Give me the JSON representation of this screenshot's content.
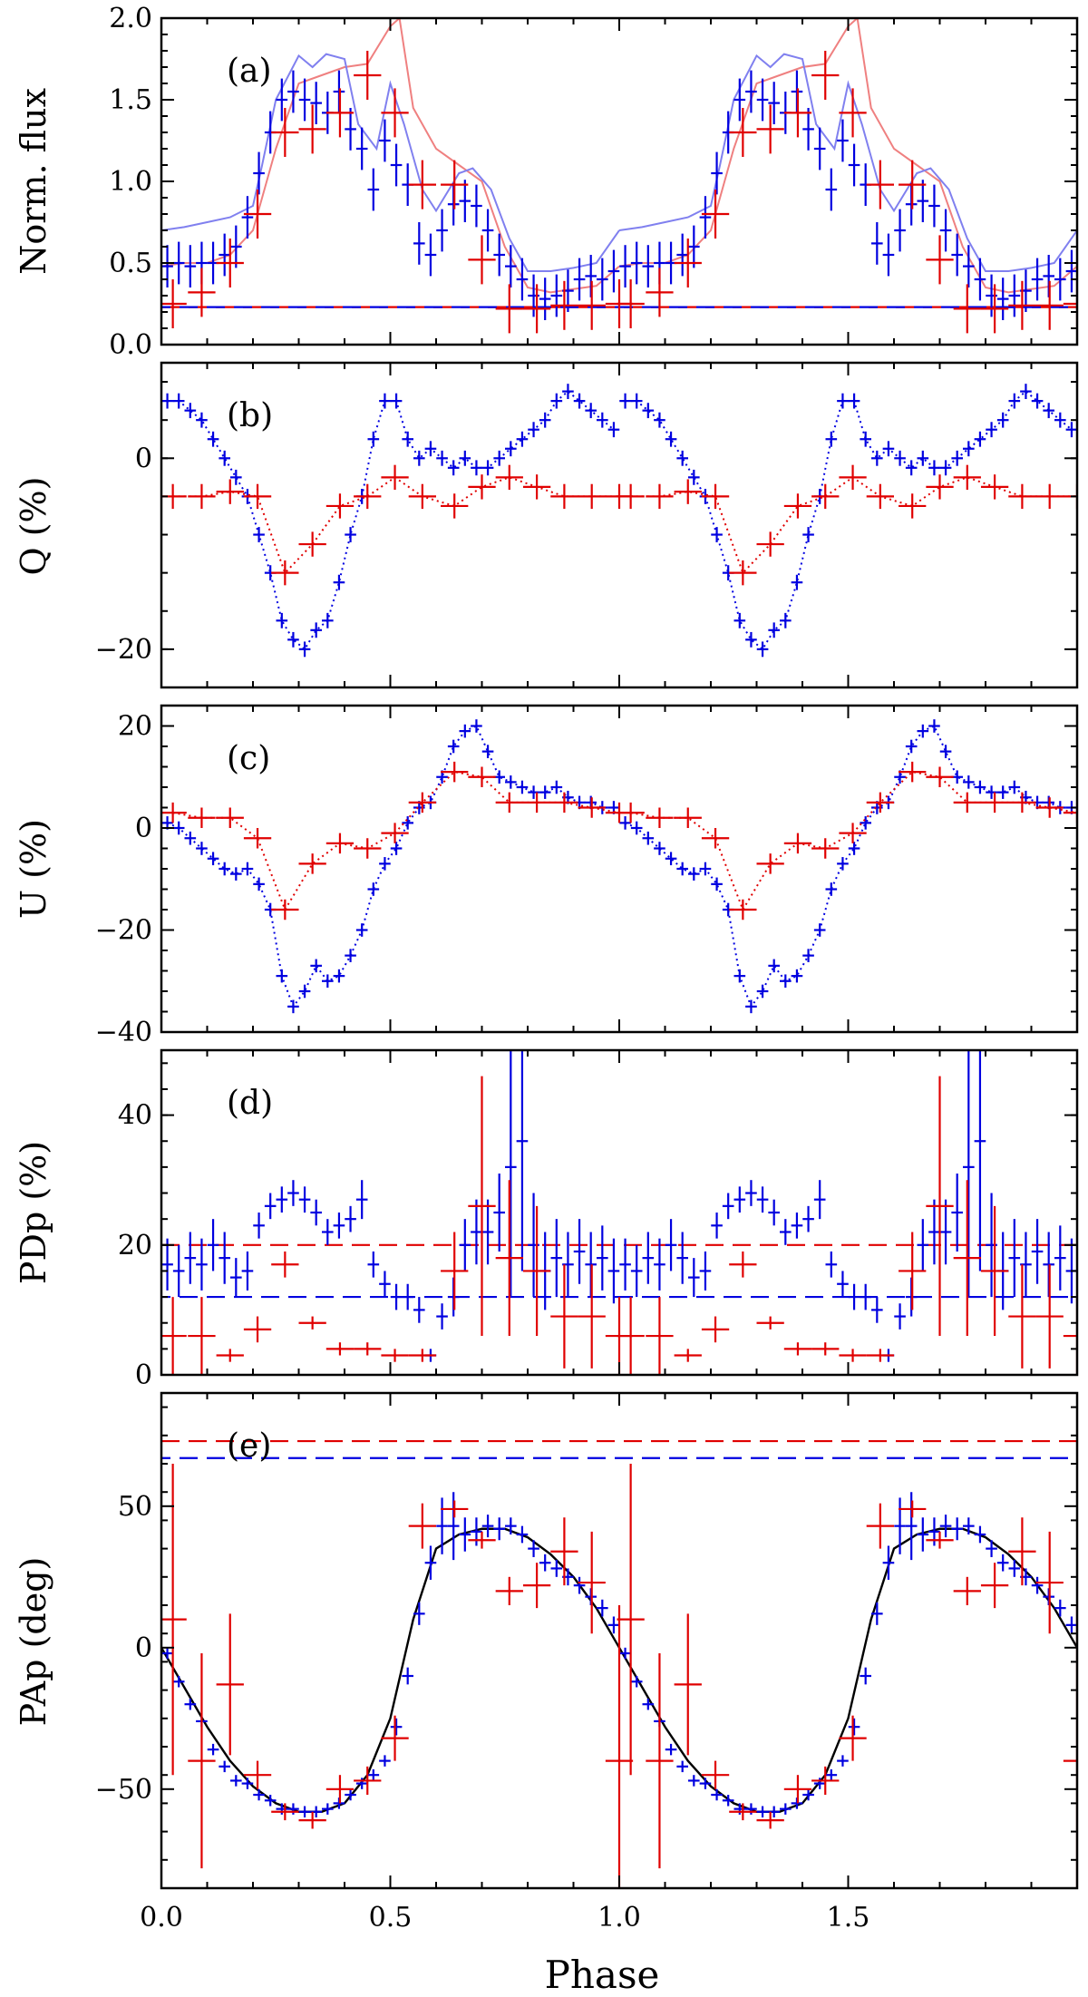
{
  "chart_data": [
    {
      "type": "line",
      "id": "a",
      "panel_label": "(a)",
      "ylabel": "Norm. flux",
      "xlim": [
        0,
        2
      ],
      "ylim": [
        0,
        2
      ],
      "yticks": [
        0,
        0.5,
        1,
        1.5,
        2
      ],
      "yticklabels": [
        "0.0",
        "0.5",
        "1.0",
        "1.5",
        "2.0"
      ],
      "curves": [
        {
          "color": "#ef8080",
          "x": [
            0,
            0.05,
            0.1,
            0.15,
            0.2,
            0.25,
            0.3,
            0.35,
            0.4,
            0.45,
            0.5,
            0.52,
            0.55,
            0.6,
            0.65,
            0.7,
            0.75,
            0.8,
            0.85,
            0.9,
            0.95,
            1.0
          ],
          "y": [
            0.48,
            0.5,
            0.5,
            0.55,
            0.7,
            1.2,
            1.6,
            1.65,
            1.7,
            1.72,
            1.95,
            2.0,
            1.45,
            1.2,
            1.1,
            1.0,
            0.6,
            0.35,
            0.32,
            0.34,
            0.36,
            0.48
          ]
        },
        {
          "color": "#8080ef",
          "x": [
            0,
            0.05,
            0.1,
            0.15,
            0.2,
            0.22,
            0.25,
            0.3,
            0.33,
            0.36,
            0.4,
            0.43,
            0.47,
            0.5,
            0.53,
            0.57,
            0.6,
            0.65,
            0.68,
            0.72,
            0.76,
            0.8,
            0.85,
            0.9,
            0.95,
            1.0
          ],
          "y": [
            0.7,
            0.72,
            0.75,
            0.78,
            0.85,
            1.1,
            1.5,
            1.77,
            1.7,
            1.78,
            1.75,
            1.35,
            1.2,
            1.6,
            1.35,
            0.95,
            0.82,
            1.05,
            1.08,
            0.95,
            0.65,
            0.45,
            0.45,
            0.47,
            0.5,
            0.7
          ]
        }
      ],
      "series": [
        {
          "color": "#0000e0",
          "x": [
            0.013,
            0.038,
            0.063,
            0.088,
            0.113,
            0.138,
            0.163,
            0.188,
            0.213,
            0.238,
            0.263,
            0.288,
            0.313,
            0.338,
            0.363,
            0.388,
            0.413,
            0.438,
            0.463,
            0.488,
            0.513,
            0.538,
            0.563,
            0.588,
            0.613,
            0.638,
            0.663,
            0.688,
            0.713,
            0.738,
            0.763,
            0.788,
            0.813,
            0.838,
            0.863,
            0.888,
            0.913,
            0.938,
            0.963,
            0.988
          ],
          "y": [
            0.48,
            0.5,
            0.48,
            0.5,
            0.5,
            0.55,
            0.6,
            0.78,
            1.05,
            1.3,
            1.5,
            1.55,
            1.5,
            1.48,
            1.42,
            1.55,
            1.32,
            1.2,
            0.95,
            1.25,
            1.1,
            0.98,
            0.62,
            0.55,
            0.7,
            0.86,
            0.88,
            0.85,
            0.7,
            0.55,
            0.48,
            0.4,
            0.3,
            0.28,
            0.3,
            0.33,
            0.4,
            0.42,
            0.4,
            0.45
          ],
          "err": 0.13
        },
        {
          "color": "#e00000",
          "x": [
            0.025,
            0.088,
            0.15,
            0.21,
            0.27,
            0.33,
            0.39,
            0.45,
            0.51,
            0.57,
            0.64,
            0.7,
            0.76,
            0.82,
            0.88,
            0.94,
            1.0
          ],
          "y": [
            0.25,
            0.32,
            0.5,
            0.8,
            1.3,
            1.32,
            1.42,
            1.65,
            1.42,
            0.98,
            0.98,
            0.52,
            0.22,
            0.22,
            0.24,
            0.24,
            0.25
          ],
          "err": 0.15
        }
      ],
      "hlines": [
        {
          "y": 0.23,
          "color": "#e00000"
        },
        {
          "y": 0.23,
          "color": "#0000e0"
        }
      ]
    },
    {
      "type": "line",
      "id": "b",
      "panel_label": "(b)",
      "ylabel": "Q (%)",
      "xlim": [
        0,
        2
      ],
      "ylim": [
        -24,
        10
      ],
      "yticks": [
        -20,
        0
      ],
      "yticklabels": [
        "−20",
        "0"
      ],
      "series": [
        {
          "color": "#0000e0",
          "x": [
            0.013,
            0.038,
            0.063,
            0.088,
            0.113,
            0.138,
            0.163,
            0.188,
            0.213,
            0.238,
            0.263,
            0.288,
            0.313,
            0.338,
            0.363,
            0.388,
            0.413,
            0.438,
            0.463,
            0.488,
            0.513,
            0.538,
            0.563,
            0.588,
            0.613,
            0.638,
            0.663,
            0.688,
            0.713,
            0.738,
            0.763,
            0.788,
            0.813,
            0.838,
            0.863,
            0.888,
            0.913,
            0.938,
            0.963,
            0.988
          ],
          "y": [
            6,
            6,
            5,
            4,
            2,
            0,
            -2,
            -4,
            -8,
            -12,
            -17,
            -19,
            -20,
            -18,
            -17,
            -13,
            -8,
            -4,
            2,
            6,
            6,
            2,
            0,
            1,
            0,
            -1,
            0,
            -1,
            -1,
            0,
            1,
            2,
            3,
            4,
            6,
            7,
            6,
            5,
            4,
            3
          ],
          "err": 0.8,
          "line": true
        },
        {
          "color": "#e00000",
          "x": [
            0.025,
            0.088,
            0.15,
            0.21,
            0.27,
            0.33,
            0.39,
            0.45,
            0.51,
            0.57,
            0.64,
            0.7,
            0.76,
            0.82,
            0.88,
            0.94,
            1.0
          ],
          "y": [
            -4,
            -4,
            -3.5,
            -4,
            -12,
            -9,
            -5,
            -4,
            -2,
            -4,
            -5,
            -3,
            -2,
            -3,
            -4,
            -4,
            -4
          ],
          "err": 1.3,
          "line": true
        }
      ]
    },
    {
      "type": "line",
      "id": "c",
      "panel_label": "(c)",
      "ylabel": "U (%)",
      "xlim": [
        0,
        2
      ],
      "ylim": [
        -40,
        24
      ],
      "yticks": [
        -40,
        -20,
        0,
        20
      ],
      "yticklabels": [
        "−40",
        "−20",
        "0",
        "20"
      ],
      "series": [
        {
          "color": "#0000e0",
          "x": [
            0.013,
            0.038,
            0.063,
            0.088,
            0.113,
            0.138,
            0.163,
            0.188,
            0.213,
            0.238,
            0.263,
            0.288,
            0.313,
            0.338,
            0.363,
            0.388,
            0.413,
            0.438,
            0.463,
            0.488,
            0.513,
            0.538,
            0.563,
            0.588,
            0.613,
            0.638,
            0.663,
            0.688,
            0.713,
            0.738,
            0.763,
            0.788,
            0.813,
            0.838,
            0.863,
            0.888,
            0.913,
            0.938,
            0.963,
            0.988
          ],
          "y": [
            1,
            0,
            -2,
            -4,
            -6,
            -8,
            -9,
            -8,
            -11,
            -16,
            -29,
            -35,
            -32,
            -27,
            -30,
            -29,
            -25,
            -20,
            -12,
            -7,
            -4,
            1,
            4,
            5,
            10,
            16,
            19,
            20,
            15,
            10,
            9,
            8,
            7,
            7,
            8,
            6,
            5,
            5,
            4,
            4
          ],
          "err": 1.3,
          "line": true
        },
        {
          "color": "#e00000",
          "x": [
            0.025,
            0.088,
            0.15,
            0.21,
            0.27,
            0.33,
            0.39,
            0.45,
            0.51,
            0.57,
            0.64,
            0.7,
            0.76,
            0.82,
            0.88,
            0.94,
            1.0
          ],
          "y": [
            3,
            2,
            2,
            -2,
            -16,
            -7,
            -3,
            -4,
            -1,
            5,
            11,
            10,
            5,
            5,
            5,
            4,
            3
          ],
          "err": 2.0,
          "line": true
        }
      ]
    },
    {
      "type": "scatter",
      "id": "d",
      "panel_label": "(d)",
      "ylabel": "PDp (%)",
      "xlim": [
        0,
        2
      ],
      "ylim": [
        0,
        50
      ],
      "yticks": [
        0,
        20,
        40
      ],
      "yticklabels": [
        "0",
        "20",
        "40"
      ],
      "series": [
        {
          "color": "#0000e0",
          "x": [
            0.013,
            0.038,
            0.063,
            0.088,
            0.113,
            0.138,
            0.163,
            0.188,
            0.213,
            0.238,
            0.263,
            0.288,
            0.313,
            0.338,
            0.363,
            0.388,
            0.413,
            0.438,
            0.463,
            0.488,
            0.513,
            0.538,
            0.563,
            0.588,
            0.613,
            0.638,
            0.663,
            0.688,
            0.713,
            0.738,
            0.763,
            0.788,
            0.813,
            0.838,
            0.863,
            0.888,
            0.913,
            0.938,
            0.963,
            0.988
          ],
          "y": [
            17,
            16,
            18,
            17,
            20,
            18,
            15,
            16,
            23,
            26,
            27,
            28,
            27,
            25,
            22,
            23,
            24,
            27,
            17,
            14,
            12,
            12,
            10,
            3,
            9,
            12,
            20,
            22,
            22,
            25,
            32,
            36,
            20,
            16,
            18,
            17,
            19,
            17,
            18,
            16
          ],
          "err": [
            4,
            4,
            4,
            4,
            4,
            4,
            3,
            3,
            2,
            2,
            2,
            2,
            2,
            2,
            2,
            2,
            2,
            3,
            2,
            2,
            2,
            2,
            2,
            1,
            2,
            3,
            4,
            5,
            5,
            6,
            20,
            20,
            8,
            6,
            6,
            5,
            5,
            5,
            5,
            5
          ]
        },
        {
          "color": "#e00000",
          "x": [
            0.025,
            0.088,
            0.15,
            0.21,
            0.27,
            0.33,
            0.39,
            0.45,
            0.51,
            0.57,
            0.64,
            0.7,
            0.76,
            0.82,
            0.88,
            0.94,
            1.0
          ],
          "y": [
            6,
            6,
            3,
            7,
            17,
            8,
            4,
            4,
            3,
            3,
            16,
            26,
            18,
            16,
            9,
            9,
            6
          ],
          "err": [
            6,
            6,
            1,
            2,
            2,
            1,
            1,
            1,
            1,
            1,
            6,
            20,
            12,
            10,
            8,
            8,
            6
          ]
        }
      ],
      "hlines": [
        {
          "y": 20,
          "color": "#e00000"
        },
        {
          "y": 12,
          "color": "#0000e0"
        }
      ]
    },
    {
      "type": "line",
      "id": "e",
      "panel_label": "(e)",
      "ylabel": "PAp (deg)",
      "xlabel": "Phase",
      "xlim": [
        0,
        2
      ],
      "ylim": [
        -85,
        90
      ],
      "yticks": [
        -50,
        0,
        50
      ],
      "yticklabels": [
        "−50",
        "0",
        "50"
      ],
      "xticks": [
        0,
        0.5,
        1,
        1.5
      ],
      "xticklabels": [
        "0.0",
        "0.5",
        "1.0",
        "1.5"
      ],
      "model": {
        "color": "#000000",
        "x": [
          0,
          0.05,
          0.1,
          0.15,
          0.2,
          0.25,
          0.3,
          0.35,
          0.4,
          0.45,
          0.5,
          0.55,
          0.6,
          0.65,
          0.7,
          0.75,
          0.8,
          0.85,
          0.9,
          0.95,
          1.0
        ],
        "y": [
          0,
          -14,
          -28,
          -40,
          -49,
          -55,
          -58,
          -58,
          -55,
          -45,
          -25,
          10,
          35,
          40,
          42,
          42,
          39,
          33,
          25,
          14,
          0
        ]
      },
      "series": [
        {
          "color": "#0000e0",
          "x": [
            0.013,
            0.038,
            0.063,
            0.088,
            0.113,
            0.138,
            0.163,
            0.188,
            0.213,
            0.238,
            0.263,
            0.288,
            0.313,
            0.338,
            0.363,
            0.388,
            0.413,
            0.438,
            0.463,
            0.488,
            0.513,
            0.538,
            0.563,
            0.588,
            0.613,
            0.638,
            0.663,
            0.688,
            0.713,
            0.738,
            0.763,
            0.788,
            0.813,
            0.838,
            0.863,
            0.888,
            0.913,
            0.938,
            0.963,
            0.988
          ],
          "y": [
            -2,
            -12,
            -20,
            -26,
            -36,
            -42,
            -47,
            -48,
            -52,
            -54,
            -57,
            -57,
            -58,
            -58,
            -57,
            -55,
            -52,
            -48,
            -45,
            -40,
            -28,
            -10,
            12,
            30,
            43,
            43,
            40,
            41,
            43,
            42,
            43,
            40,
            35,
            30,
            28,
            25,
            22,
            18,
            14,
            8
          ],
          "err": [
            2,
            2,
            2,
            2,
            2,
            2,
            2,
            2,
            2,
            2,
            2,
            2,
            2,
            2,
            2,
            2,
            2,
            2,
            2,
            2,
            3,
            3,
            4,
            6,
            10,
            12,
            6,
            5,
            4,
            4,
            3,
            3,
            3,
            3,
            3,
            3,
            3,
            3,
            3,
            3
          ]
        },
        {
          "color": "#e00000",
          "x": [
            0.025,
            0.088,
            0.15,
            0.21,
            0.27,
            0.33,
            0.39,
            0.45,
            0.51,
            0.57,
            0.64,
            0.7,
            0.76,
            0.82,
            0.88,
            0.94,
            1.0
          ],
          "y": [
            10,
            -40,
            -13,
            -45,
            -58,
            -61,
            -50,
            -47,
            -32,
            43,
            49,
            38,
            20,
            22,
            34,
            23,
            -40
          ],
          "err": [
            55,
            38,
            25,
            5,
            3,
            3,
            5,
            5,
            8,
            8,
            3,
            3,
            5,
            8,
            12,
            18,
            55
          ]
        }
      ],
      "hlines": [
        {
          "y": 73,
          "color": "#e00000"
        },
        {
          "y": 67,
          "color": "#0000e0"
        }
      ]
    }
  ]
}
